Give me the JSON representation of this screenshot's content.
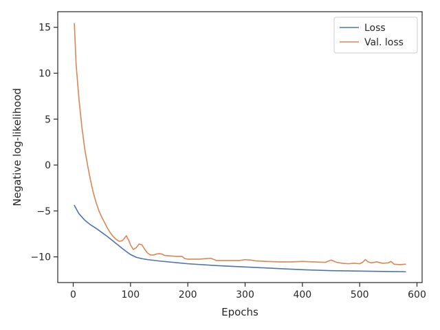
{
  "chart_data": {
    "type": "line",
    "title": "",
    "xlabel": "Epochs",
    "ylabel": "Negative log-likelihood",
    "xlim": [
      -27,
      609
    ],
    "ylim": [
      -12.8,
      16.7
    ],
    "xticks": [
      0,
      100,
      200,
      300,
      400,
      500,
      600
    ],
    "yticks": [
      -10,
      -5,
      0,
      5,
      10,
      15
    ],
    "grid": false,
    "legend_position": "top-right",
    "series": [
      {
        "name": "Loss",
        "color": "#4c72b0",
        "x": [
          2,
          10,
          20,
          30,
          40,
          50,
          60,
          70,
          80,
          90,
          100,
          110,
          120,
          130,
          150,
          175,
          200,
          250,
          300,
          350,
          400,
          450,
          500,
          550,
          580
        ],
        "y": [
          -4.4,
          -5.3,
          -6.0,
          -6.5,
          -6.9,
          -7.35,
          -7.8,
          -8.3,
          -8.8,
          -9.3,
          -9.75,
          -10.05,
          -10.2,
          -10.3,
          -10.45,
          -10.6,
          -10.75,
          -10.95,
          -11.1,
          -11.25,
          -11.4,
          -11.5,
          -11.55,
          -11.6,
          -11.62
        ]
      },
      {
        "name": "Val. loss",
        "color": "#dd8452",
        "x": [
          2,
          5,
          10,
          15,
          20,
          25,
          30,
          35,
          40,
          45,
          50,
          55,
          60,
          65,
          70,
          75,
          80,
          85,
          88,
          90,
          93,
          95,
          97,
          100,
          105,
          110,
          115,
          120,
          125,
          130,
          135,
          140,
          145,
          150,
          155,
          160,
          170,
          180,
          190,
          195,
          200,
          220,
          240,
          250,
          270,
          290,
          300,
          310,
          320,
          340,
          360,
          380,
          400,
          420,
          440,
          450,
          460,
          470,
          480,
          490,
          500,
          505,
          510,
          515,
          520,
          530,
          540,
          550,
          555,
          560,
          570,
          580
        ],
        "y": [
          15.4,
          11.0,
          7.2,
          4.2,
          1.8,
          0.0,
          -1.6,
          -3.0,
          -4.1,
          -5.0,
          -5.7,
          -6.3,
          -6.9,
          -7.4,
          -7.8,
          -8.1,
          -8.3,
          -8.25,
          -8.1,
          -7.9,
          -7.7,
          -8.0,
          -8.2,
          -8.7,
          -9.2,
          -9.0,
          -8.6,
          -8.7,
          -9.2,
          -9.6,
          -9.8,
          -9.8,
          -9.7,
          -9.65,
          -9.7,
          -9.85,
          -9.9,
          -9.95,
          -9.95,
          -10.2,
          -10.25,
          -10.25,
          -10.15,
          -10.4,
          -10.4,
          -10.4,
          -10.3,
          -10.35,
          -10.45,
          -10.5,
          -10.55,
          -10.55,
          -10.5,
          -10.55,
          -10.6,
          -10.35,
          -10.6,
          -10.7,
          -10.75,
          -10.7,
          -10.75,
          -10.6,
          -10.3,
          -10.55,
          -10.65,
          -10.55,
          -10.7,
          -10.65,
          -10.5,
          -10.8,
          -10.85,
          -10.8
        ]
      }
    ]
  }
}
